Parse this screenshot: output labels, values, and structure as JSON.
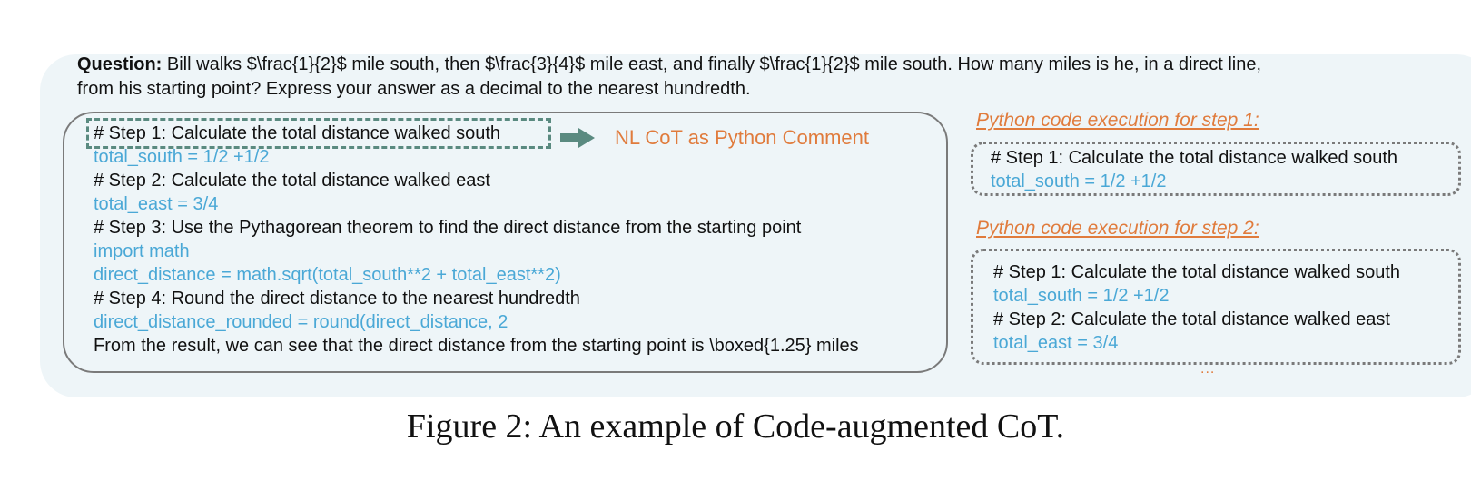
{
  "question": {
    "label": "Question:",
    "line1": " Bill walks $\\frac{1}{2}$ mile south, then $\\frac{3}{4}$ mile east, and finally $\\frac{1}{2}$ mile south. How many miles is he, in a direct line,",
    "line2": "from his starting point?  Express your answer as a decimal to the nearest hundredth."
  },
  "main": {
    "lines": [
      "# Step 1: Calculate the total distance walked south",
      "total_south = 1/2 +1/2",
      "# Step 2: Calculate the total distance walked east",
      "total_east = 3/4",
      "# Step 3: Use the Pythagorean theorem to find the direct distance from the starting point",
      "import math",
      "direct_distance = math.sqrt(total_south**2 + total_east**2)",
      "# Step 4: Round the direct distance to the nearest hundredth",
      "direct_distance_rounded = round(direct_distance, 2",
      "From the result, we can see that the direct distance from the starting point is \\boxed{1.25} miles"
    ]
  },
  "annotation": {
    "label": "NL CoT as Python Comment"
  },
  "exec1": {
    "title": "Python code execution for step 1:",
    "lines": [
      "# Step 1: Calculate the total distance walked south",
      "total_south = 1/2 +1/2"
    ]
  },
  "exec2": {
    "title": "Python code execution for step 2:",
    "lines": [
      "# Step 1: Calculate the total distance walked south",
      "total_south = 1/2 +1/2",
      "# Step 2: Calculate the total distance walked east",
      "total_east = 3/4"
    ],
    "ellipsis": "..."
  },
  "caption": "Figure 2: An example of Code-augmented CoT.",
  "colors": {
    "code": "#4aa8d6",
    "accent": "#e07b3c",
    "panel": "#eef5f8",
    "dash": "#5a8a80"
  }
}
